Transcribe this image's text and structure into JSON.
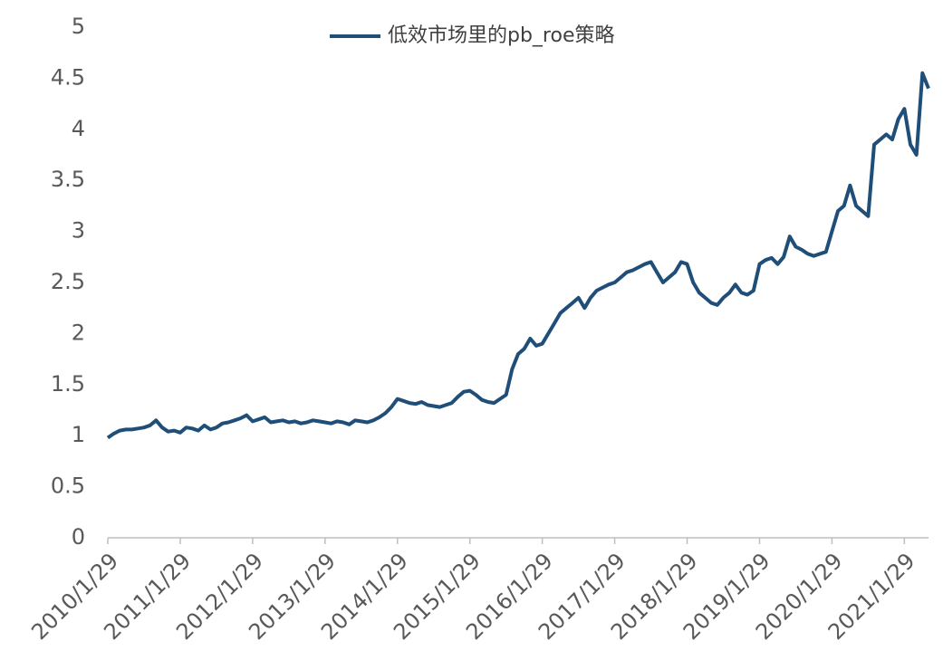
{
  "chart_data": {
    "type": "line",
    "categories": [
      "2010/1/29",
      null,
      null,
      null,
      null,
      null,
      null,
      null,
      null,
      null,
      null,
      null,
      "2011/1/29",
      null,
      null,
      null,
      null,
      null,
      null,
      null,
      null,
      null,
      null,
      null,
      "2012/1/29",
      null,
      null,
      null,
      null,
      null,
      null,
      null,
      null,
      null,
      null,
      null,
      "2013/1/29",
      null,
      null,
      null,
      null,
      null,
      null,
      null,
      null,
      null,
      null,
      null,
      "2014/1/29",
      null,
      null,
      null,
      null,
      null,
      null,
      null,
      null,
      null,
      null,
      null,
      "2015/1/29",
      null,
      null,
      null,
      null,
      null,
      null,
      null,
      null,
      null,
      null,
      null,
      "2016/1/29",
      null,
      null,
      null,
      null,
      null,
      null,
      null,
      null,
      null,
      null,
      null,
      "2017/1/29",
      null,
      null,
      null,
      null,
      null,
      null,
      null,
      null,
      null,
      null,
      null,
      "2018/1/29",
      null,
      null,
      null,
      null,
      null,
      null,
      null,
      null,
      null,
      null,
      null,
      "2019/1/29",
      null,
      null,
      null,
      null,
      null,
      null,
      null,
      null,
      null,
      null,
      null,
      "2020/1/29",
      null,
      null,
      null,
      null,
      null,
      null,
      null,
      null,
      null,
      null,
      null,
      "2021/1/29",
      null,
      null,
      null,
      null
    ],
    "series": [
      {
        "name": "低效市场里的pb_roe策略",
        "color": "#1f4e79",
        "values": [
          0.98,
          1.02,
          1.05,
          1.06,
          1.06,
          1.07,
          1.08,
          1.1,
          1.15,
          1.08,
          1.04,
          1.05,
          1.03,
          1.08,
          1.07,
          1.05,
          1.1,
          1.06,
          1.08,
          1.12,
          1.13,
          1.15,
          1.17,
          1.2,
          1.14,
          1.16,
          1.18,
          1.13,
          1.14,
          1.15,
          1.13,
          1.14,
          1.12,
          1.13,
          1.15,
          1.14,
          1.13,
          1.12,
          1.14,
          1.13,
          1.11,
          1.15,
          1.14,
          1.13,
          1.15,
          1.18,
          1.22,
          1.28,
          1.36,
          1.34,
          1.32,
          1.31,
          1.33,
          1.3,
          1.29,
          1.28,
          1.3,
          1.32,
          1.38,
          1.43,
          1.44,
          1.4,
          1.35,
          1.33,
          1.32,
          1.36,
          1.4,
          1.65,
          1.8,
          1.85,
          1.95,
          1.88,
          1.9,
          2.0,
          2.1,
          2.2,
          2.25,
          2.3,
          2.35,
          2.25,
          2.35,
          2.42,
          2.45,
          2.48,
          2.5,
          2.55,
          2.6,
          2.62,
          2.65,
          2.68,
          2.7,
          2.6,
          2.5,
          2.55,
          2.6,
          2.7,
          2.68,
          2.5,
          2.4,
          2.35,
          2.3,
          2.28,
          2.35,
          2.4,
          2.48,
          2.4,
          2.38,
          2.42,
          2.68,
          2.72,
          2.74,
          2.68,
          2.75,
          2.95,
          2.85,
          2.82,
          2.78,
          2.76,
          2.78,
          2.8,
          3.0,
          3.2,
          3.25,
          3.45,
          3.25,
          3.2,
          3.15,
          3.85,
          3.9,
          3.95,
          3.9,
          4.1,
          4.2,
          3.85,
          3.75,
          4.55,
          4.4
        ]
      }
    ],
    "ylim": [
      0,
      5
    ],
    "yticks": [
      0,
      0.5,
      1,
      1.5,
      2,
      2.5,
      3,
      3.5,
      4,
      4.5,
      5
    ],
    "grid": false,
    "legend": "top"
  }
}
